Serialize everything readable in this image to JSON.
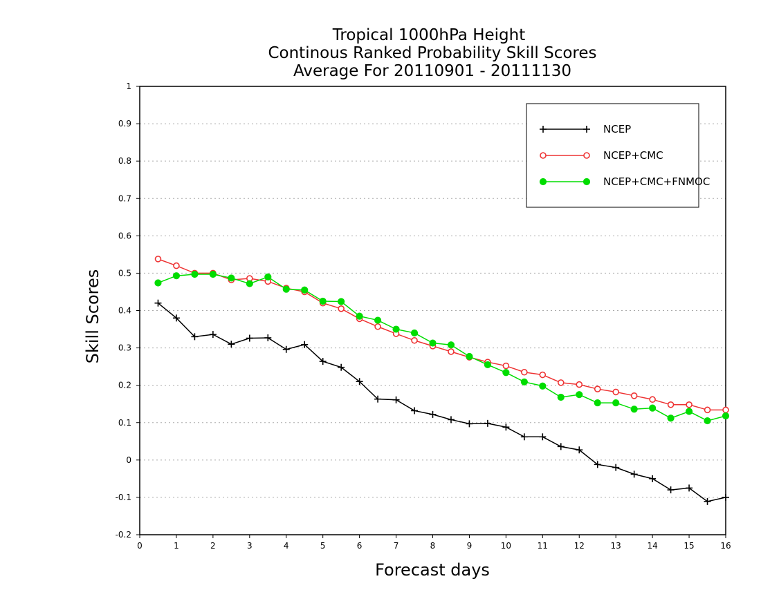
{
  "chart_data": {
    "type": "line",
    "title": [
      "Tropical 1000hPa Height",
      "Continous Ranked Probability Skill Scores",
      "Average For 20110901 - 20111130"
    ],
    "xlabel": "Forecast days",
    "ylabel": "Skill Scores",
    "xlim": [
      0,
      16
    ],
    "ylim": [
      -0.2,
      1
    ],
    "xticks": [
      "0",
      "1",
      "2",
      "3",
      "4",
      "5",
      "6",
      "7",
      "8",
      "9",
      "10",
      "11",
      "12",
      "13",
      "14",
      "15",
      "16"
    ],
    "yticks": [
      "-0.2",
      "-0.1",
      "0",
      "0.1",
      "0.2",
      "0.3",
      "0.4",
      "0.5",
      "0.6",
      "0.7",
      "0.8",
      "0.9",
      "1"
    ],
    "grid": "horizontal dotted",
    "legend_position": "top-right",
    "x": [
      0.5,
      1,
      1.5,
      2,
      2.5,
      3,
      3.5,
      4,
      4.5,
      5,
      5.5,
      6,
      6.5,
      7,
      7.5,
      8,
      8.5,
      9,
      9.5,
      10,
      10.5,
      11,
      11.5,
      12,
      12.5,
      13,
      13.5,
      14,
      14.5,
      15,
      15.5,
      16
    ],
    "series": [
      {
        "name": "NCEP",
        "color": "#000000",
        "marker": "plus",
        "values": [
          0.42,
          0.38,
          0.33,
          0.336,
          0.31,
          0.326,
          0.327,
          0.296,
          0.309,
          0.264,
          0.248,
          0.21,
          0.163,
          0.161,
          0.132,
          0.122,
          0.108,
          0.097,
          0.098,
          0.088,
          0.062,
          0.062,
          0.036,
          0.027,
          -0.012,
          -0.02,
          -0.038,
          -0.05,
          -0.08,
          -0.075,
          -0.111,
          -0.1
        ]
      },
      {
        "name": "NCEP+CMC",
        "color": "#ee3333",
        "marker": "open-circle",
        "values": [
          0.538,
          0.52,
          0.5,
          0.5,
          0.482,
          0.486,
          0.478,
          0.46,
          0.45,
          0.42,
          0.405,
          0.378,
          0.357,
          0.338,
          0.32,
          0.305,
          0.29,
          0.275,
          0.262,
          0.252,
          0.235,
          0.228,
          0.207,
          0.202,
          0.19,
          0.182,
          0.172,
          0.162,
          0.148,
          0.148,
          0.134,
          0.134
        ]
      },
      {
        "name": "NCEP+CMC+FNMOC",
        "color": "#00dd00",
        "marker": "filled-circle",
        "values": [
          0.474,
          0.493,
          0.497,
          0.497,
          0.487,
          0.472,
          0.49,
          0.457,
          0.455,
          0.425,
          0.424,
          0.385,
          0.374,
          0.35,
          0.34,
          0.313,
          0.308,
          0.277,
          0.255,
          0.234,
          0.209,
          0.198,
          0.168,
          0.175,
          0.153,
          0.153,
          0.136,
          0.139,
          0.112,
          0.13,
          0.105,
          0.118
        ]
      }
    ]
  }
}
